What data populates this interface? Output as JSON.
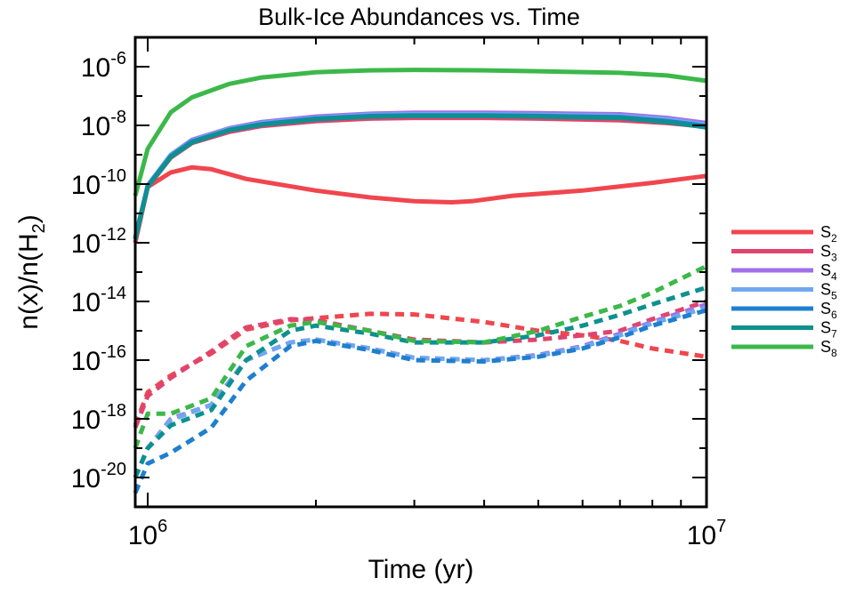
{
  "chart_data": {
    "type": "line",
    "title": "Bulk-Ice Abundances vs. Time",
    "xlabel": "Time (yr)",
    "ylabel_main": "n(x)/n(H",
    "ylabel_sub": "2",
    "ylabel_close": ")",
    "x_scale": "log",
    "y_scale": "log",
    "xlim": [
      950000,
      10000000
    ],
    "ylim": [
      1e-21,
      1e-05
    ],
    "x_ticks": [
      {
        "base": "10",
        "exp": "6",
        "value": 1000000
      },
      {
        "base": "10",
        "exp": "7",
        "value": 10000000
      }
    ],
    "y_ticks": [
      {
        "base": "10",
        "exp": "-6",
        "value": 1e-06
      },
      {
        "base": "10",
        "exp": "-8",
        "value": 1e-08
      },
      {
        "base": "10",
        "exp": "-10",
        "value": 1e-10
      },
      {
        "base": "10",
        "exp": "-12",
        "value": 1e-12
      },
      {
        "base": "10",
        "exp": "-14",
        "value": 1e-14
      },
      {
        "base": "10",
        "exp": "-16",
        "value": 1e-16
      },
      {
        "base": "10",
        "exp": "-18",
        "value": 1e-18
      },
      {
        "base": "10",
        "exp": "-20",
        "value": 1e-20
      }
    ],
    "grid": false,
    "legend_position": "right",
    "series": [
      {
        "name": "S",
        "sub": "2",
        "color": "#f0464e",
        "style": "solid",
        "x": [
          950000,
          1000000,
          1100000,
          1200000,
          1300000,
          1500000,
          2000000,
          2500000,
          3000000,
          3500000,
          3800000,
          4500000,
          6000000,
          8000000,
          10000000
        ],
        "y": [
          1e-12,
          8e-11,
          2.5e-10,
          3.7e-10,
          3.2e-10,
          1.5e-10,
          6e-11,
          3.5e-11,
          2.6e-11,
          2.4e-11,
          2.6e-11,
          4e-11,
          6e-11,
          1.1e-10,
          1.9e-10
        ]
      },
      {
        "name": "S",
        "sub": "3",
        "color": "#e0446e",
        "style": "solid",
        "x": [
          950000,
          1000000,
          1100000,
          1200000,
          1400000,
          1600000,
          2000000,
          2500000,
          3000000,
          4000000,
          5000000,
          7000000,
          8500000,
          10000000
        ],
        "y": [
          1.4e-12,
          8e-11,
          8e-10,
          2.5e-09,
          6e-09,
          9.5e-09,
          1.4e-08,
          1.7e-08,
          1.8e-08,
          1.8e-08,
          1.7e-08,
          1.5e-08,
          1.2e-08,
          9e-09
        ]
      },
      {
        "name": "S",
        "sub": "4",
        "color": "#a070e8",
        "style": "solid",
        "x": [
          950000,
          1000000,
          1100000,
          1200000,
          1400000,
          1600000,
          2000000,
          2500000,
          3000000,
          4000000,
          5000000,
          7000000,
          8500000,
          10000000
        ],
        "y": [
          1.5e-12,
          9e-11,
          1e-09,
          3.2e-09,
          8e-09,
          1.3e-08,
          2e-08,
          2.5e-08,
          2.7e-08,
          2.7e-08,
          2.6e-08,
          2.4e-08,
          1.8e-08,
          1.2e-08
        ]
      },
      {
        "name": "S",
        "sub": "5",
        "color": "#70a8f0",
        "style": "solid",
        "x": [
          950000,
          1000000,
          1100000,
          1200000,
          1400000,
          1600000,
          2000000,
          2500000,
          3000000,
          4000000,
          5000000,
          7000000,
          8500000,
          10000000
        ],
        "y": [
          1.5e-12,
          9e-11,
          1e-09,
          3e-09,
          7.5e-09,
          1.2e-08,
          1.8e-08,
          2.3e-08,
          2.4e-08,
          2.4e-08,
          2.3e-08,
          2.1e-08,
          1.6e-08,
          1.05e-08
        ]
      },
      {
        "name": "S",
        "sub": "6",
        "color": "#1f7fcf",
        "style": "solid",
        "x": [
          950000,
          1000000,
          1100000,
          1200000,
          1400000,
          1600000,
          2000000,
          2500000,
          3000000,
          4000000,
          5000000,
          7000000,
          8500000,
          10000000
        ],
        "y": [
          1.4e-12,
          8.5e-11,
          9e-10,
          2.8e-09,
          7e-09,
          1.1e-08,
          1.7e-08,
          2.1e-08,
          2.2e-08,
          2.2e-08,
          2.1e-08,
          1.9e-08,
          1.4e-08,
          9.5e-09
        ]
      },
      {
        "name": "S",
        "sub": "7",
        "color": "#0e9090",
        "style": "solid",
        "x": [
          950000,
          1000000,
          1100000,
          1200000,
          1400000,
          1600000,
          2000000,
          2500000,
          3000000,
          4000000,
          5000000,
          7000000,
          8500000,
          10000000
        ],
        "y": [
          1.3e-12,
          8e-11,
          8.5e-10,
          2.6e-09,
          6.8e-09,
          1.05e-08,
          1.6e-08,
          2e-08,
          2.1e-08,
          2.1e-08,
          2e-08,
          1.8e-08,
          1.3e-08,
          8.5e-09
        ]
      },
      {
        "name": "S",
        "sub": "8",
        "color": "#3cb84a",
        "style": "solid",
        "x": [
          950000,
          1000000,
          1100000,
          1200000,
          1400000,
          1600000,
          2000000,
          2500000,
          3000000,
          4000000,
          5000000,
          7000000,
          8500000,
          10000000
        ],
        "y": [
          4e-11,
          1.6e-09,
          2.8e-08,
          9e-08,
          2.6e-07,
          4.3e-07,
          6.5e-07,
          7.5e-07,
          7.8e-07,
          7.5e-07,
          7e-07,
          6.2e-07,
          5e-07,
          3.3e-07
        ]
      },
      {
        "name": "",
        "color": "#f0464e",
        "style": "dashed",
        "x": [
          950000,
          1000000,
          1100000,
          1300000,
          1500000,
          1800000,
          2000000,
          2500000,
          3000000,
          4000000,
          5000000,
          6000000,
          7000000,
          8000000,
          10000000
        ],
        "y": [
          6e-19,
          8e-18,
          3e-17,
          1.7e-16,
          1.1e-15,
          2.3e-15,
          2.7e-15,
          3.8e-15,
          3.6e-15,
          2e-15,
          1e-15,
          7e-16,
          4.5e-16,
          2.5e-16,
          1.3e-16
        ]
      },
      {
        "name": "",
        "color": "#e0446e",
        "style": "dashed",
        "x": [
          950000,
          1000000,
          1100000,
          1300000,
          1500000,
          1800000,
          2000000,
          2500000,
          3000000,
          4000000,
          5000000,
          6000000,
          7000000,
          8000000,
          10000000
        ],
        "y": [
          5e-19,
          6e-18,
          2.5e-17,
          2e-16,
          1.3e-15,
          2.5e-15,
          2.3e-15,
          1e-15,
          5e-16,
          4e-16,
          5e-16,
          7e-16,
          1e-15,
          2.5e-15,
          1e-14
        ]
      },
      {
        "name": "",
        "color": "#a070e8",
        "style": "dashed",
        "x": [
          950000,
          1000000,
          1100000,
          1300000,
          1500000,
          1800000,
          2000000,
          2500000,
          3000000,
          4000000,
          5000000,
          6000000,
          7000000,
          8000000,
          10000000
        ],
        "y": [
          1e-20,
          1e-19,
          1e-18,
          3e-18,
          1e-16,
          4e-16,
          5e-16,
          2.5e-16,
          1.2e-16,
          1e-16,
          1.5e-16,
          3e-16,
          8e-16,
          2e-15,
          8e-15
        ]
      },
      {
        "name": "",
        "color": "#70a8f0",
        "style": "dashed",
        "x": [
          950000,
          1000000,
          1100000,
          1300000,
          1500000,
          1800000,
          2000000,
          2500000,
          3000000,
          4000000,
          5000000,
          6000000,
          7000000,
          8000000,
          10000000
        ],
        "y": [
          1e-20,
          1e-19,
          9e-19,
          3e-18,
          1e-16,
          4e-16,
          5e-16,
          2.5e-16,
          1.2e-16,
          1e-16,
          1.4e-16,
          2.8e-16,
          7e-16,
          1.8e-15,
          6e-15
        ]
      },
      {
        "name": "",
        "color": "#1f7fcf",
        "style": "dashed",
        "x": [
          950000,
          1000000,
          1100000,
          1300000,
          1500000,
          1800000,
          2000000,
          2500000,
          3000000,
          4000000,
          5000000,
          6000000,
          7000000,
          8000000,
          10000000
        ],
        "y": [
          3e-21,
          3e-20,
          7e-20,
          5e-19,
          2e-17,
          3e-16,
          4.5e-16,
          2.2e-16,
          1e-16,
          9e-17,
          1.3e-16,
          2.5e-16,
          6e-16,
          1.5e-15,
          5e-15
        ]
      },
      {
        "name": "",
        "color": "#0e9090",
        "style": "dashed",
        "x": [
          950000,
          1000000,
          1100000,
          1300000,
          1500000,
          1800000,
          2000000,
          2500000,
          3000000,
          4000000,
          5000000,
          6000000,
          7000000,
          8000000,
          10000000
        ],
        "y": [
          1e-20,
          1e-19,
          6e-19,
          2e-18,
          1e-16,
          1e-15,
          1.5e-15,
          8e-16,
          4e-16,
          4e-16,
          7e-16,
          1.5e-15,
          3.5e-15,
          8e-15,
          3e-14
        ]
      },
      {
        "name": "",
        "color": "#3cb84a",
        "style": "dashed",
        "x": [
          950000,
          1000000,
          1100000,
          1300000,
          1500000,
          1800000,
          2000000,
          2500000,
          3000000,
          4000000,
          5000000,
          6000000,
          7000000,
          8000000,
          10000000
        ],
        "y": [
          1e-19,
          1.5e-18,
          1.5e-18,
          5e-18,
          3e-16,
          1.5e-15,
          2e-15,
          1e-15,
          4.5e-16,
          4e-16,
          1e-15,
          3e-15,
          7e-15,
          2e-14,
          1.6e-13
        ]
      }
    ]
  }
}
